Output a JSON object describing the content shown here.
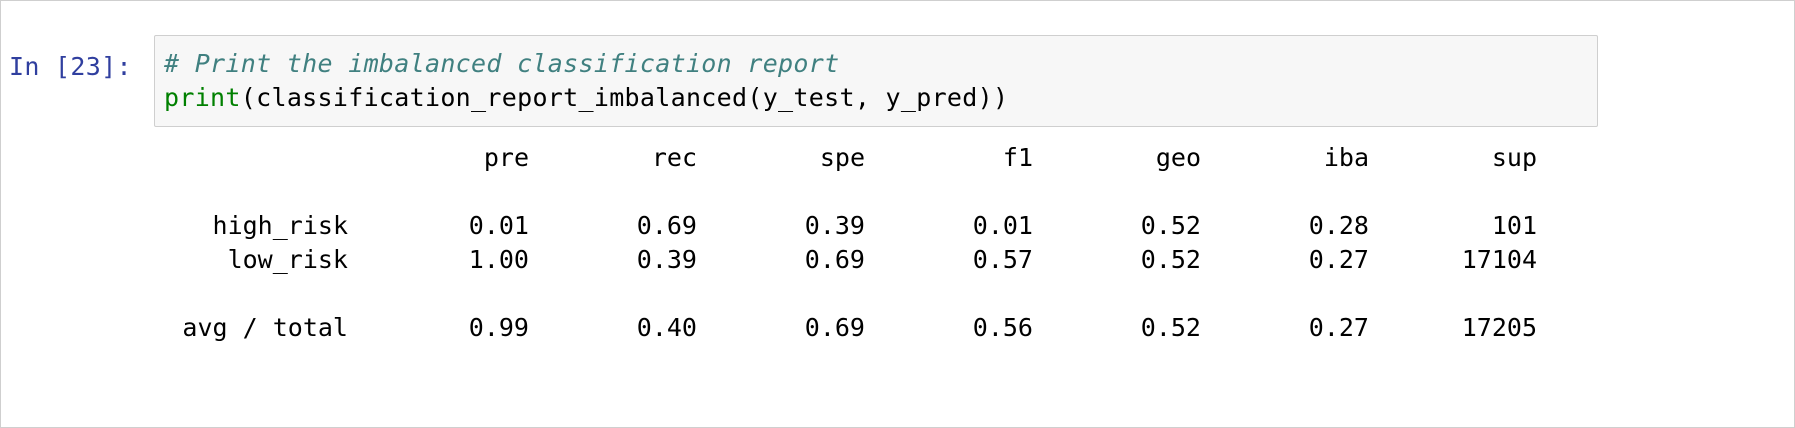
{
  "cell": {
    "prompt": "In [23]:",
    "code": {
      "comment": "# Print the imbalanced classification report",
      "builtin": "print",
      "rest": "(classification_report_imbalanced(y_test, y_pred))"
    }
  },
  "report": {
    "columns": [
      "pre",
      "rec",
      "spe",
      "f1",
      "geo",
      "iba",
      "sup"
    ],
    "rows": [
      {
        "label": "high_risk",
        "values": [
          "0.01",
          "0.69",
          "0.39",
          "0.01",
          "0.52",
          "0.28",
          "101"
        ]
      },
      {
        "label": "low_risk",
        "values": [
          "1.00",
          "0.39",
          "0.69",
          "0.57",
          "0.52",
          "0.27",
          "17104"
        ]
      }
    ],
    "total": {
      "label": "avg / total",
      "values": [
        "0.99",
        "0.40",
        "0.69",
        "0.56",
        "0.52",
        "0.27",
        "17205"
      ]
    }
  }
}
